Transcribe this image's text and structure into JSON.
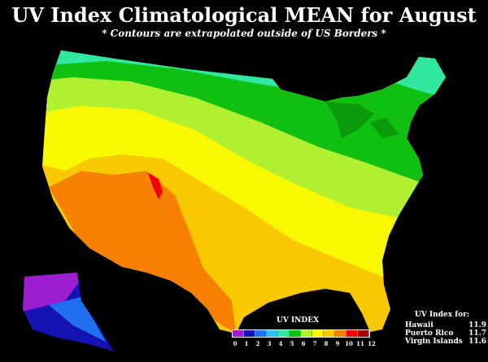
{
  "title": "UV Index Climatological MEAN for August",
  "subtitle": "* Contours are extrapolated outside of US Borders *",
  "legend": {
    "title": "UV INDEX",
    "ticks": [
      "0",
      "1",
      "2",
      "3",
      "4",
      "5",
      "6",
      "7",
      "8",
      "9",
      "10",
      "11",
      "12"
    ],
    "colors": [
      "#9a1ed0",
      "#1414b4",
      "#2070f0",
      "#30c0f0",
      "#30e8a0",
      "#10c010",
      "#b0f030",
      "#f8f800",
      "#f8c800",
      "#f88000",
      "#f00000",
      "#a00000"
    ]
  },
  "other_locations": {
    "header": "UV Index for:",
    "items": [
      {
        "name": "Hawaii",
        "value": "11.9"
      },
      {
        "name": "Puerto Rico",
        "value": "11.7"
      },
      {
        "name": "Virgin Islands",
        "value": "11.6"
      }
    ]
  }
}
